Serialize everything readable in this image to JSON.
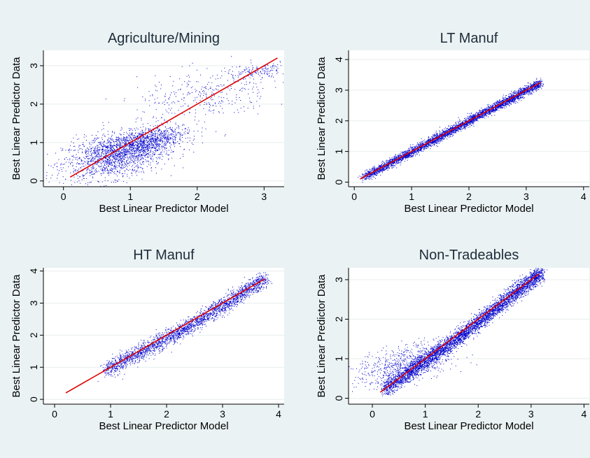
{
  "chart_data": [
    {
      "type": "scatter",
      "title": "Agriculture/Mining",
      "xlabel": "Best Linear Predictor Model",
      "ylabel": "Best Linear Predictor Data",
      "xlim": [
        -0.3,
        3.3
      ],
      "ylim": [
        -0.15,
        3.4
      ],
      "xticks": [
        0,
        1,
        2,
        3
      ],
      "yticks": [
        0,
        1,
        2,
        3
      ],
      "grid": true,
      "series": [
        {
          "color": "#0000cc",
          "clusters": [
            {
              "x": 0.75,
              "y": 0.65,
              "sx": 0.38,
              "sy": 0.28,
              "n": 1500
            },
            {
              "x": 1.15,
              "y": 0.95,
              "sx": 0.28,
              "sy": 0.18,
              "n": 700
            },
            {
              "x": 1.35,
              "y": 1.2,
              "sx": 0.3,
              "sy": 0.12,
              "n": 300
            },
            {
              "x": 2.1,
              "y": 2.2,
              "sx": 0.5,
              "sy": 0.35,
              "n": 350
            },
            {
              "x": 2.9,
              "y": 2.85,
              "sx": 0.25,
              "sy": 0.1,
              "n": 150
            }
          ]
        },
        {
          "color": "#e00000",
          "line": [
            [
              0.1,
              0.1
            ],
            [
              3.2,
              3.2
            ]
          ]
        }
      ]
    },
    {
      "type": "scatter",
      "title": "LT Manuf",
      "xlabel": "Best Linear Predictor Model",
      "ylabel": "Best Linear Predictor Data",
      "xlim": [
        -0.1,
        4.1
      ],
      "ylim": [
        -0.15,
        4.3
      ],
      "xticks": [
        0,
        1,
        2,
        3,
        4
      ],
      "yticks": [
        0,
        1,
        2,
        3,
        4
      ],
      "grid": true,
      "series": [
        {
          "color": "#0000cc",
          "band": {
            "x0": 0.15,
            "x1": 3.25,
            "spread": 0.07,
            "n": 4000
          }
        },
        {
          "color": "#e00000",
          "line": [
            [
              0.1,
              0.1
            ],
            [
              3.25,
              3.25
            ]
          ]
        }
      ]
    },
    {
      "type": "scatter",
      "title": "HT Manuf",
      "xlabel": "Best Linear Predictor Model",
      "ylabel": "Best Linear Predictor Data",
      "xlim": [
        -0.2,
        4.1
      ],
      "ylim": [
        -0.15,
        4.1
      ],
      "xticks": [
        0,
        1,
        2,
        3,
        4
      ],
      "yticks": [
        0,
        1,
        2,
        3,
        4
      ],
      "grid": true,
      "series": [
        {
          "color": "#0000cc",
          "band": {
            "x0": 0.9,
            "x1": 3.75,
            "spread": 0.12,
            "offset": -0.12,
            "n": 2500
          }
        },
        {
          "color": "#e00000",
          "line": [
            [
              0.2,
              0.2
            ],
            [
              3.75,
              3.75
            ]
          ]
        }
      ]
    },
    {
      "type": "scatter",
      "title": "Non-Tradeables",
      "xlabel": "Best Linear Predictor Model",
      "ylabel": "Best Linear Predictor Data",
      "xlim": [
        -0.45,
        4.1
      ],
      "ylim": [
        -0.15,
        3.3
      ],
      "xticks": [
        0,
        1,
        2,
        3,
        4
      ],
      "yticks": [
        0,
        1,
        2,
        3
      ],
      "grid": true,
      "series": [
        {
          "color": "#0000cc",
          "band": {
            "x0": 0.2,
            "x1": 3.2,
            "spread": 0.1,
            "offset": -0.08,
            "n": 4500
          }
        },
        {
          "color": "#0000cc",
          "clusters": [
            {
              "x": 0.6,
              "y": 0.85,
              "sx": 0.45,
              "sy": 0.25,
              "n": 700
            }
          ]
        },
        {
          "color": "#e00000",
          "line": [
            [
              0.15,
              0.15
            ],
            [
              3.15,
              3.15
            ]
          ]
        }
      ]
    }
  ]
}
